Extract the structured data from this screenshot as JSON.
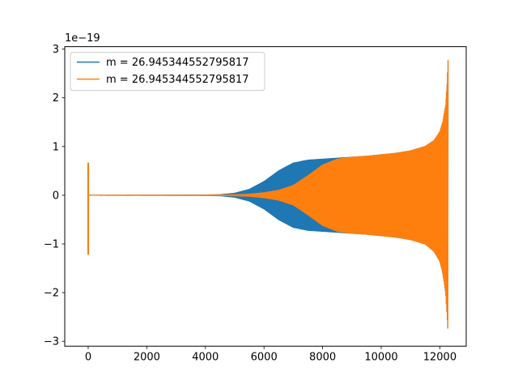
{
  "chart_data": {
    "type": "line",
    "title": "",
    "xlabel": "",
    "ylabel": "",
    "xlim": [
      -800,
      12900
    ],
    "ylim": [
      -3.1,
      3.05
    ],
    "y_offset_label": "1e−19",
    "x_ticks": [
      0,
      2000,
      4000,
      6000,
      8000,
      10000,
      12000
    ],
    "y_ticks": [
      -3,
      -2,
      -1,
      0,
      1,
      2,
      3
    ],
    "x_tick_labels": [
      "0",
      "2000",
      "4000",
      "6000",
      "8000",
      "10000",
      "12000"
    ],
    "y_tick_labels": [
      "−3",
      "−2",
      "−1",
      "0",
      "1",
      "2",
      "3"
    ],
    "grid": false,
    "legend_position": "top-left",
    "series": [
      {
        "name": "m = 26.945344552795817",
        "color": "#1f77b4",
        "envelope_x": [
          0,
          4000,
          4500,
          5000,
          5500,
          6000,
          6500,
          7000,
          7500,
          8000,
          8500,
          9000,
          9500,
          10000,
          10500,
          11000,
          11500,
          11800,
          12000,
          12100,
          12200,
          12250,
          12280
        ],
        "envelope_upper": [
          0.0,
          0.003,
          0.01,
          0.04,
          0.12,
          0.28,
          0.5,
          0.66,
          0.72,
          0.74,
          0.76,
          0.78,
          0.8,
          0.83,
          0.86,
          0.91,
          1.0,
          1.12,
          1.3,
          1.5,
          1.85,
          2.3,
          2.75
        ],
        "envelope_lower": [
          0.0,
          -0.003,
          -0.01,
          -0.04,
          -0.12,
          -0.28,
          -0.5,
          -0.66,
          -0.72,
          -0.74,
          -0.76,
          -0.78,
          -0.8,
          -0.83,
          -0.86,
          -0.91,
          -1.0,
          -1.15,
          -1.35,
          -1.6,
          -2.0,
          -2.5,
          -2.8
        ],
        "spike": {
          "x": 0,
          "max": 0.66,
          "min": -1.2
        }
      },
      {
        "name": "m = 26.945344552795817",
        "color": "#ff7f0e",
        "envelope_x": [
          0,
          4000,
          4500,
          5000,
          5500,
          6000,
          6500,
          7000,
          7500,
          8000,
          8500,
          9000,
          9500,
          10000,
          10500,
          11000,
          11500,
          11800,
          12000,
          12100,
          12200,
          12250,
          12280
        ],
        "envelope_upper": [
          0.0,
          0.001,
          0.004,
          0.01,
          0.02,
          0.05,
          0.1,
          0.2,
          0.4,
          0.62,
          0.74,
          0.78,
          0.8,
          0.83,
          0.86,
          0.91,
          1.0,
          1.12,
          1.3,
          1.5,
          1.85,
          2.3,
          2.78
        ],
        "envelope_lower": [
          0.0,
          -0.001,
          -0.004,
          -0.01,
          -0.02,
          -0.05,
          -0.1,
          -0.2,
          -0.4,
          -0.62,
          -0.74,
          -0.78,
          -0.8,
          -0.83,
          -0.86,
          -0.91,
          -1.0,
          -1.15,
          -1.35,
          -1.6,
          -2.0,
          -2.5,
          -2.82
        ],
        "spike": {
          "x": 0,
          "max": 0.67,
          "min": -1.22
        }
      }
    ]
  }
}
